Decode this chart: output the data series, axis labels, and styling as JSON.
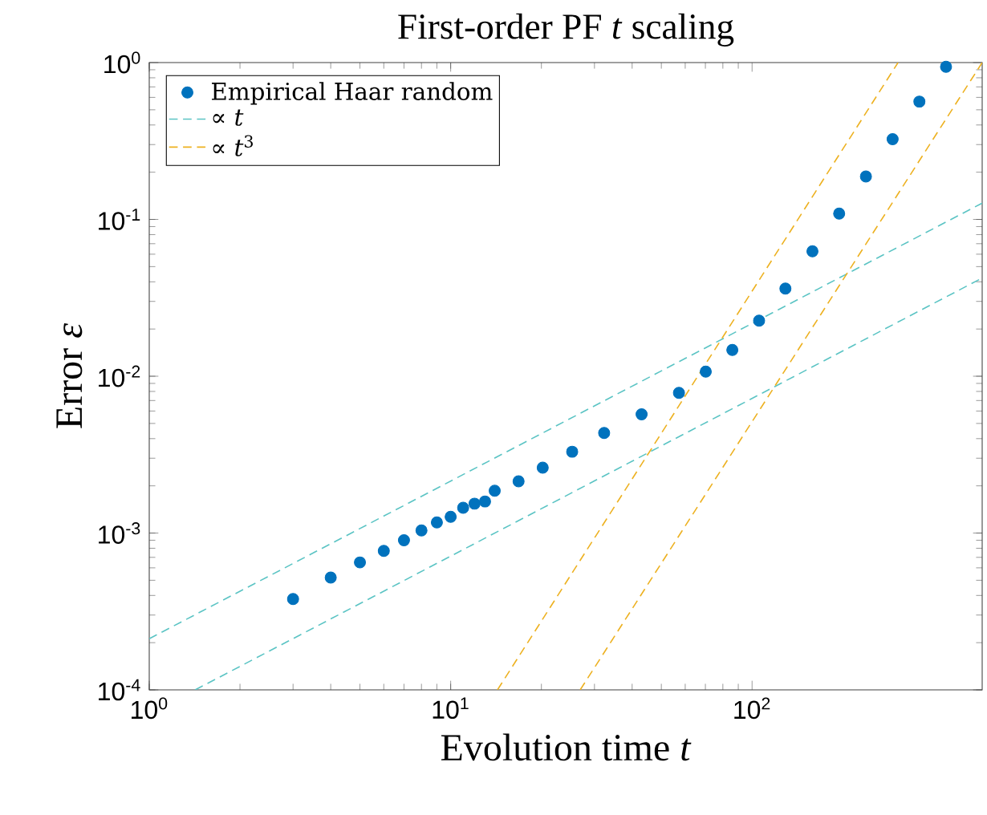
{
  "chart_data": {
    "type": "scatter",
    "title": "First-order PF *t* scaling",
    "xlabel": "Evolution time *t*",
    "ylabel": "Error *ε*",
    "log": "xy",
    "legend": "top left",
    "xlim": [
      1,
      580
    ],
    "ylim": [
      0.0001,
      1
    ],
    "xticks": [
      {
        "value": 1,
        "label": "10$^{0}$"
      },
      {
        "value": 10,
        "label": "10$^{1}$"
      },
      {
        "value": 100,
        "label": "10$^{2}$"
      }
    ],
    "yticks": [
      {
        "value": 0.0001,
        "label": "10$^{-4}$"
      },
      {
        "value": 0.001,
        "label": "10$^{-3}$"
      },
      {
        "value": 0.01,
        "label": "10$^{-2}$"
      },
      {
        "value": 0.1,
        "label": "10$^{-1}$"
      },
      {
        "value": 1,
        "label": "10$^{0}$"
      }
    ],
    "series": [
      {
        "name": "Empirical Haar random",
        "type": "scatter",
        "marker": "circle",
        "color": "#0072bd",
        "x": [
          3,
          4,
          5,
          6,
          7,
          8,
          9,
          10,
          11,
          12,
          13,
          14,
          16.8,
          20.2,
          25.3,
          32.3,
          43,
          57.2,
          70.2,
          86,
          105.5,
          129,
          158.6,
          194.5,
          238.6,
          292.6,
          359,
          440
        ],
        "values": [
          0.00038,
          0.00052,
          0.00065,
          0.00077,
          0.0009,
          0.00104,
          0.00117,
          0.00127,
          0.00145,
          0.00154,
          0.00159,
          0.00186,
          0.00214,
          0.00261,
          0.0033,
          0.00435,
          0.00572,
          0.00783,
          0.0107,
          0.0147,
          0.0226,
          0.0362,
          0.0626,
          0.109,
          0.188,
          0.325,
          0.564,
          0.94
        ]
      },
      {
        "name": "∝ *t*",
        "type": "line",
        "marker": "none",
        "line_style": "dashed",
        "color": "#5bc4c4",
        "x": [
          1,
          580
        ],
        "values": [
          0.000212,
          0.127
        ]
      },
      {
        "type": "line",
        "marker": "none",
        "line_style": "dashed",
        "color": "#5bc4c4",
        "x": [
          1.42,
          580
        ],
        "values": [
          0.0001,
          0.0423
        ]
      },
      {
        "name": "∝ *t*$^{3}$",
        "type": "line",
        "marker": "none",
        "line_style": "dashed",
        "color": "#edb120",
        "x": [
          14.3,
          305
        ],
        "values": [
          0.0001,
          1
        ]
      },
      {
        "type": "line",
        "marker": "none",
        "line_style": "dashed",
        "color": "#edb120",
        "x": [
          26.9,
          580
        ],
        "values": [
          0.0001,
          1
        ]
      }
    ]
  }
}
